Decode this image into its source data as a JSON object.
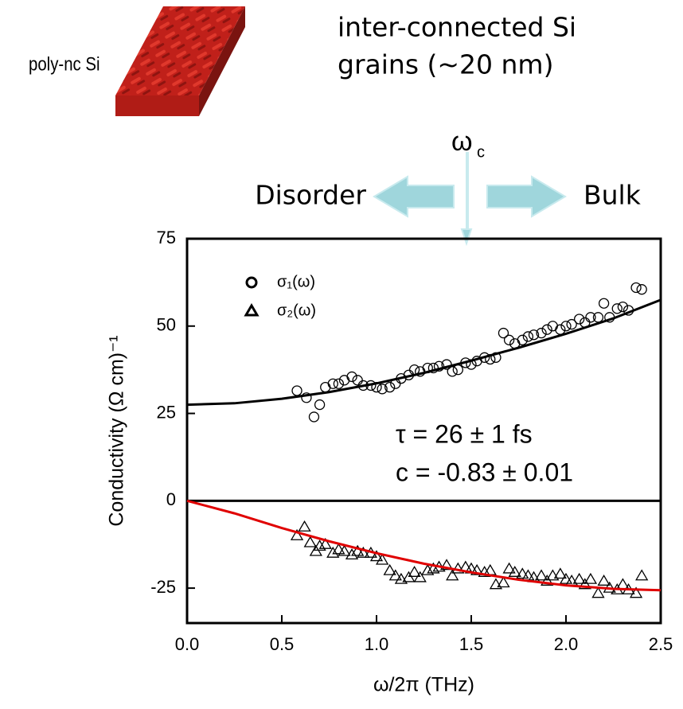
{
  "chart_data": {
    "type": "scatter",
    "sample_label": "poly-nc Si",
    "description_lines": [
      "inter-connected Si",
      "grains (~20 nm)"
    ],
    "crossover": {
      "symbol": "ω",
      "subscript": "c"
    },
    "left_label": "Disorder",
    "right_label": "Bulk",
    "fit_lines": [
      "τ = 26 ± 1 fs",
      "c = -0.83 ± 0.01"
    ],
    "x_label": "ω/2π (THz)",
    "y_label": "Conductivity (Ω cm)⁻¹",
    "xlim": [
      0,
      2.5
    ],
    "ylim": [
      -35,
      75
    ],
    "xticks": [
      {
        "value": 0,
        "label": "0.0"
      },
      0.5,
      {
        "value": 1,
        "label": "1.0"
      },
      1.5,
      {
        "value": 2,
        "label": "2.0"
      },
      2.5
    ],
    "yticks": [
      -25,
      0,
      25,
      50,
      75
    ],
    "zero_line": true,
    "series": [
      {
        "name": "σ₁(ω)",
        "marker": "circle",
        "color": "#000000",
        "x": [
          0.58,
          0.63,
          0.67,
          0.7,
          0.73,
          0.77,
          0.8,
          0.83,
          0.87,
          0.9,
          0.93,
          0.97,
          1.0,
          1.03,
          1.07,
          1.1,
          1.13,
          1.17,
          1.2,
          1.23,
          1.27,
          1.3,
          1.33,
          1.37,
          1.4,
          1.43,
          1.47,
          1.5,
          1.53,
          1.57,
          1.6,
          1.63,
          1.67,
          1.7,
          1.73,
          1.77,
          1.8,
          1.83,
          1.87,
          1.9,
          1.93,
          1.97,
          2.0,
          2.03,
          2.07,
          2.1,
          2.13,
          2.17,
          2.2,
          2.23,
          2.27,
          2.3,
          2.33,
          2.37,
          2.4
        ],
        "values": [
          31.5,
          29.5,
          24,
          27.5,
          32.5,
          33.5,
          33.5,
          34.5,
          35.5,
          34.5,
          33,
          33,
          32.5,
          32,
          32.5,
          33.5,
          35,
          36,
          37.5,
          37,
          38,
          38,
          38.5,
          39,
          37,
          37.5,
          39.5,
          39,
          40,
          41,
          40.5,
          41,
          48,
          46,
          45,
          46,
          47,
          47.5,
          48,
          49,
          50,
          49,
          50,
          50.5,
          52,
          51,
          52.5,
          52.5,
          56.5,
          52.5,
          55,
          55.5,
          54.5,
          61,
          60.5
        ]
      },
      {
        "name": "σ₂(ω)",
        "marker": "triangle",
        "color": "#000000",
        "x": [
          0.58,
          0.62,
          0.65,
          0.68,
          0.7,
          0.73,
          0.77,
          0.8,
          0.83,
          0.87,
          0.9,
          0.93,
          0.97,
          1.0,
          1.03,
          1.07,
          1.1,
          1.13,
          1.17,
          1.2,
          1.23,
          1.27,
          1.3,
          1.33,
          1.37,
          1.4,
          1.43,
          1.47,
          1.5,
          1.53,
          1.57,
          1.6,
          1.63,
          1.67,
          1.7,
          1.73,
          1.77,
          1.8,
          1.83,
          1.87,
          1.9,
          1.93,
          1.97,
          2.0,
          2.03,
          2.07,
          2.1,
          2.13,
          2.17,
          2.2,
          2.23,
          2.27,
          2.3,
          2.33,
          2.37,
          2.4
        ],
        "values": [
          -10,
          -7.5,
          -12,
          -14.5,
          -13,
          -12.5,
          -15,
          -14,
          -14.5,
          -15.5,
          -14.5,
          -15,
          -15,
          -16,
          -17,
          -20,
          -21.5,
          -22.5,
          -22,
          -20.5,
          -22,
          -20,
          -19.5,
          -19,
          -18.5,
          -21.5,
          -19.5,
          -19,
          -19.5,
          -20,
          -20.5,
          -20,
          -24,
          -23.5,
          -19.5,
          -20.5,
          -21,
          -21.5,
          -22,
          -21.5,
          -23,
          -21.5,
          -21,
          -22.5,
          -23,
          -22.5,
          -24,
          -22.5,
          -26.5,
          -23,
          -25,
          -25.5,
          -24,
          -25.5,
          -26.5,
          -21.5
        ]
      },
      {
        "marker": "line",
        "color": "#000000",
        "x": [
          0,
          0.25,
          0.5,
          0.75,
          1,
          1.25,
          1.5,
          1.75,
          2,
          2.25,
          2.5
        ],
        "values": [
          27.5,
          27.9,
          29.2,
          31.1,
          33.6,
          36.6,
          40.1,
          43.8,
          47.8,
          52.2,
          57.5
        ]
      },
      {
        "marker": "line",
        "color": "#e00000",
        "x": [
          0,
          0.25,
          0.5,
          0.75,
          1,
          1.25,
          1.5,
          1.75,
          2,
          2.25,
          2.5
        ],
        "values": [
          0,
          -3.6,
          -7.8,
          -11.6,
          -15,
          -18,
          -20.5,
          -22.6,
          -24.2,
          -25.2,
          -25.6
        ]
      }
    ]
  }
}
